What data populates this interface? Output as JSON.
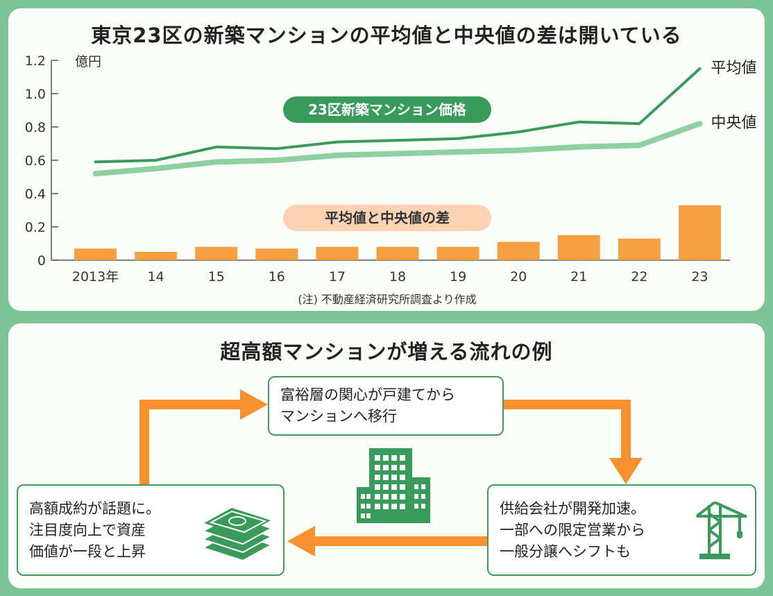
{
  "chart_title": "東京23区の新築マンションの平均値と中央値の差は開いている",
  "chart_data": {
    "type": "line+bar",
    "categories": [
      "2013年",
      "14",
      "15",
      "16",
      "17",
      "18",
      "19",
      "20",
      "21",
      "22",
      "23"
    ],
    "ylabel": "億円",
    "ylim": [
      0,
      1.2
    ],
    "yticks": [
      "0",
      "0.2",
      "0.4",
      "0.6",
      "0.8",
      "1.0",
      "1.2"
    ],
    "series": [
      {
        "name": "平均値",
        "type": "line",
        "color": "#3a9a5c",
        "values": [
          0.59,
          0.6,
          0.68,
          0.67,
          0.71,
          0.72,
          0.73,
          0.77,
          0.83,
          0.82,
          1.15
        ]
      },
      {
        "name": "中央値",
        "type": "line",
        "color": "#8fd0a0",
        "values": [
          0.52,
          0.55,
          0.59,
          0.6,
          0.63,
          0.64,
          0.65,
          0.66,
          0.68,
          0.69,
          0.82
        ]
      },
      {
        "name": "平均値と中央値の差",
        "type": "bar",
        "color": "#f7a042",
        "values": [
          0.07,
          0.05,
          0.08,
          0.07,
          0.08,
          0.08,
          0.08,
          0.11,
          0.15,
          0.13,
          0.33
        ]
      }
    ],
    "pill_lines": "23区新築マンション価格",
    "pill_bars": "平均値と中央値の差",
    "note": "(注) 不動産経済研究所調査より作成",
    "colors": {
      "pill_lines_bg": "#3a9a5c",
      "pill_bars_bg": "#fbd3b4"
    }
  },
  "flow": {
    "title": "超高額マンションが増える流れの例",
    "top_box": [
      "富裕層の関心が戸建てから",
      "マンションへ移行"
    ],
    "left_box": [
      "高額成約が話題に。",
      "注目度向上で資産",
      "価値が一段と上昇"
    ],
    "right_box": [
      "供給会社が開発加速。",
      "一部への限定営業から",
      "一般分譲へシフトも"
    ],
    "icons": {
      "center": "office-building-icon",
      "left": "money-stack-icon",
      "right": "construction-crane-icon"
    },
    "colors": {
      "arrow": "#f7922e",
      "icon_green": "#3a9a5c",
      "box_border": "#3f9a5e"
    }
  }
}
